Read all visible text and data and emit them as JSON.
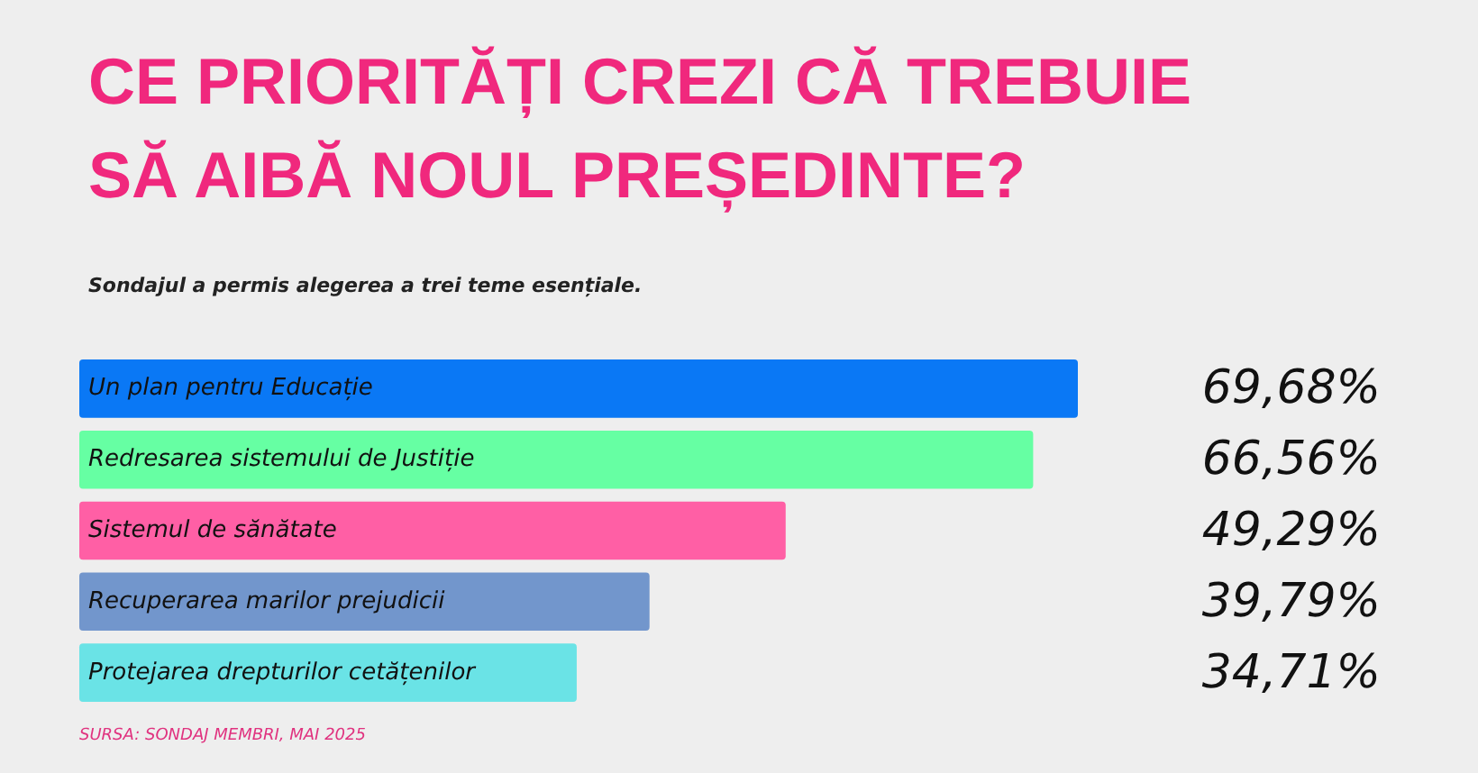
{
  "chart_data": {
    "type": "bar",
    "orientation": "horizontal",
    "title": "CE PRIORITĂȚI CREZI CĂ TREBUIE\nSĂ AIBĂ NOUL PREȘEDINTE?",
    "subtitle": "Sondajul a permis alegerea a trei teme esențiale.",
    "categories": [
      "Un plan pentru Educație",
      "Redresarea sistemului de Justiție",
      "Sistemul de sănătate",
      "Recuperarea marilor prejudicii",
      "Protejarea drepturilor cetățenilor"
    ],
    "values": [
      69.68,
      66.56,
      49.29,
      39.79,
      34.71
    ],
    "colors": [
      "#0a78f5",
      "#66ffa3",
      "#ff5fa5",
      "#7296cc",
      "#6ae3e6"
    ],
    "value_labels": [
      "69,68%",
      "66,56%",
      "49,29%",
      "39,79%",
      "34,71%"
    ],
    "annotations": [
      "SURSA: SONDAJ MEMBRI, MAI 2025"
    ]
  }
}
